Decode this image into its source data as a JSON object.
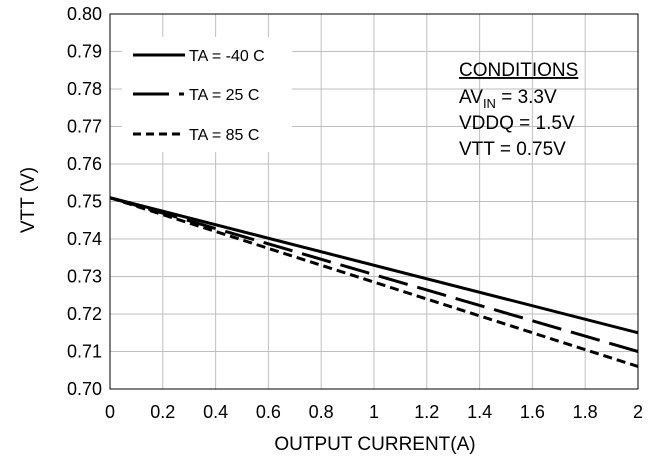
{
  "chart_data": {
    "type": "line",
    "xlabel": "OUTPUT CURRENT(A)",
    "ylabel": "VTT (V)",
    "xlim": [
      0,
      2
    ],
    "ylim": [
      0.7,
      0.8
    ],
    "grid": true,
    "x_ticks": [
      "0",
      "0.2",
      "0.4",
      "0.6",
      "0.8",
      "1",
      "1.2",
      "1.4",
      "1.6",
      "1.8",
      "2"
    ],
    "y_ticks": [
      "0.70",
      "0.71",
      "0.72",
      "0.73",
      "0.74",
      "0.75",
      "0.76",
      "0.77",
      "0.78",
      "0.79",
      "0.80"
    ],
    "legend_position": "top-left",
    "series": [
      {
        "name": "TA = -40 C",
        "style": "solid",
        "x": [
          0,
          2
        ],
        "y": [
          0.751,
          0.715
        ]
      },
      {
        "name": "TA = 25 C",
        "style": "long-dash",
        "x": [
          0,
          2
        ],
        "y": [
          0.751,
          0.71
        ]
      },
      {
        "name": "TA = 85 C",
        "style": "short-dash",
        "x": [
          0,
          2
        ],
        "y": [
          0.751,
          0.706
        ]
      }
    ],
    "conditions": {
      "title": "CONDITIONS",
      "line1_prefix": "AV",
      "line1_sub": "IN",
      "line1_suffix": " = 3.3V",
      "line2": "VDDQ = 1.5V",
      "line3": "VTT = 0.75V"
    },
    "colors": {
      "lines": "#000000",
      "grid": "#bfbfbf"
    }
  }
}
